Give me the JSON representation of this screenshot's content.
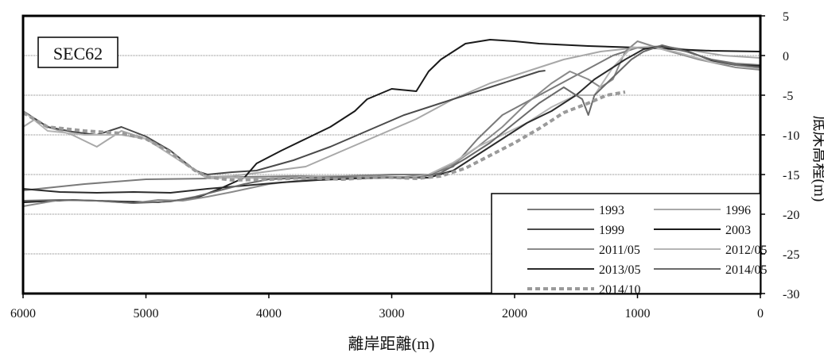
{
  "chart_data": {
    "type": "line",
    "title": "",
    "panel_label": "SEC62",
    "xlabel": "離岸距離(m)",
    "ylabel": "底床高程(m)",
    "xlim": [
      6000,
      0
    ],
    "ylim": [
      -30,
      5
    ],
    "x_ticks": [
      "6000",
      "5000",
      "4000",
      "3000",
      "2000",
      "1000",
      "0"
    ],
    "y_ticks": [
      "5",
      "0",
      "-5",
      "-10",
      "-15",
      "-20",
      "-25",
      "-30"
    ],
    "grid": true,
    "legend_position": "bottom-right",
    "series": [
      {
        "name": "1993",
        "color": "#7a7a7a",
        "dash": "",
        "width": 2,
        "points": [
          [
            6000,
            -17
          ],
          [
            5500,
            -16.2
          ],
          [
            5000,
            -15.6
          ],
          [
            4500,
            -15.5
          ],
          [
            4200,
            -15.3
          ],
          [
            3800,
            -15.2
          ],
          [
            3400,
            -15.2
          ],
          [
            3000,
            -15
          ],
          [
            2700,
            -15
          ],
          [
            2500,
            -14
          ],
          [
            2300,
            -10.5
          ],
          [
            2100,
            -7.5
          ],
          [
            1800,
            -5
          ],
          [
            1500,
            -2.5
          ],
          [
            1200,
            0
          ],
          [
            1000,
            1
          ],
          [
            800,
            1.1
          ],
          [
            600,
            0.5
          ],
          [
            400,
            -0.5
          ],
          [
            200,
            -1
          ],
          [
            0,
            -1.2
          ]
        ]
      },
      {
        "name": "1996",
        "color": "#a8a8a8",
        "dash": "",
        "width": 2,
        "points": [
          [
            6000,
            -9
          ],
          [
            5900,
            -8
          ],
          [
            5800,
            -9
          ],
          [
            5600,
            -10
          ],
          [
            5400,
            -11.5
          ],
          [
            5200,
            -9.5
          ],
          [
            5000,
            -10.5
          ],
          [
            4800,
            -12
          ],
          [
            4600,
            -14.5
          ],
          [
            4500,
            -15.3
          ],
          [
            4300,
            -15.2
          ],
          [
            4000,
            -14.6
          ],
          [
            3700,
            -14
          ],
          [
            3400,
            -12
          ],
          [
            3100,
            -10
          ],
          [
            2800,
            -8
          ],
          [
            2500,
            -5.5
          ],
          [
            2200,
            -3.5
          ],
          [
            1900,
            -2
          ],
          [
            1600,
            -0.5
          ],
          [
            1300,
            0.5
          ],
          [
            1000,
            1
          ],
          [
            800,
            1.2
          ],
          [
            500,
            0.5
          ],
          [
            300,
            0
          ],
          [
            0,
            -0.3
          ]
        ]
      },
      {
        "name": "1999",
        "color": "#4a4a4a",
        "dash": "",
        "width": 2,
        "points": [
          [
            6000,
            -7
          ],
          [
            5800,
            -9
          ],
          [
            5600,
            -9.6
          ],
          [
            5400,
            -10
          ],
          [
            5200,
            -9
          ],
          [
            5000,
            -10.2
          ],
          [
            4800,
            -12
          ],
          [
            4600,
            -14.5
          ],
          [
            4500,
            -15
          ],
          [
            4300,
            -14.7
          ],
          [
            4100,
            -14.5
          ],
          [
            3800,
            -13.2
          ],
          [
            3500,
            -11.5
          ],
          [
            3200,
            -9.5
          ],
          [
            2900,
            -7.5
          ],
          [
            2600,
            -6
          ],
          [
            2400,
            -5
          ],
          [
            2200,
            -4
          ],
          [
            2000,
            -3
          ],
          [
            1800,
            -2
          ],
          [
            1750,
            -1.9
          ]
        ]
      },
      {
        "name": "2003",
        "color": "#1a1a1a",
        "dash": "",
        "width": 2,
        "points": [
          [
            6000,
            -18.5
          ],
          [
            5600,
            -18.2
          ],
          [
            5200,
            -18.4
          ],
          [
            4900,
            -18.5
          ],
          [
            4600,
            -18
          ],
          [
            4400,
            -16.8
          ],
          [
            4200,
            -15.4
          ],
          [
            4100,
            -13.6
          ],
          [
            3900,
            -12
          ],
          [
            3700,
            -10.5
          ],
          [
            3500,
            -9
          ],
          [
            3300,
            -7
          ],
          [
            3200,
            -5.5
          ],
          [
            3000,
            -4.2
          ],
          [
            2800,
            -4.5
          ],
          [
            2700,
            -2
          ],
          [
            2600,
            -0.5
          ],
          [
            2400,
            1.5
          ],
          [
            2200,
            2
          ],
          [
            2000,
            1.8
          ],
          [
            1800,
            1.5
          ],
          [
            1400,
            1.2
          ],
          [
            1000,
            1
          ],
          [
            700,
            0.8
          ],
          [
            400,
            0.6
          ],
          [
            0,
            0.5
          ]
        ]
      },
      {
        "name": "2011/05",
        "color": "#8a8a8a",
        "dash": "",
        "width": 2,
        "points": [
          [
            6000,
            -19
          ],
          [
            5700,
            -18.2
          ],
          [
            5400,
            -18.3
          ],
          [
            5100,
            -18.6
          ],
          [
            4900,
            -18.2
          ],
          [
            4700,
            -18.3
          ],
          [
            4500,
            -17.8
          ],
          [
            4300,
            -17.2
          ],
          [
            4000,
            -16.2
          ],
          [
            3600,
            -15.5
          ],
          [
            3200,
            -15.2
          ],
          [
            2900,
            -15.3
          ],
          [
            2700,
            -15
          ],
          [
            2500,
            -13.7
          ],
          [
            2300,
            -11.5
          ],
          [
            2100,
            -9
          ],
          [
            1900,
            -6
          ],
          [
            1700,
            -3.5
          ],
          [
            1550,
            -2
          ],
          [
            1400,
            -3
          ],
          [
            1300,
            -4
          ],
          [
            1200,
            -3
          ],
          [
            1100,
            0.5
          ],
          [
            1000,
            1.8
          ],
          [
            800,
            0.8
          ],
          [
            500,
            -0.5
          ],
          [
            200,
            -1.5
          ],
          [
            0,
            -1.8
          ]
        ]
      },
      {
        "name": "2012/05",
        "color": "#b5b5b5",
        "dash": "",
        "width": 2,
        "points": [
          [
            6000,
            -7
          ],
          [
            5800,
            -9.5
          ],
          [
            5500,
            -10
          ],
          [
            5200,
            -10
          ],
          [
            5000,
            -10.5
          ],
          [
            4800,
            -12.5
          ],
          [
            4600,
            -14.5
          ],
          [
            4500,
            -15.5
          ],
          [
            4300,
            -15.4
          ],
          [
            4000,
            -15.5
          ],
          [
            3600,
            -15.2
          ],
          [
            3200,
            -15.3
          ],
          [
            2900,
            -15.5
          ],
          [
            2700,
            -15
          ],
          [
            2500,
            -13.5
          ],
          [
            2300,
            -11.5
          ],
          [
            2100,
            -10
          ],
          [
            1900,
            -8.5
          ],
          [
            1700,
            -6.5
          ],
          [
            1500,
            -5
          ],
          [
            1350,
            -5
          ],
          [
            1200,
            -1.5
          ],
          [
            1050,
            1
          ],
          [
            900,
            1.1
          ],
          [
            700,
            0.5
          ],
          [
            400,
            -0.8
          ],
          [
            0,
            -1.6
          ]
        ]
      },
      {
        "name": "2013/05",
        "color": "#2b2b2b",
        "dash": "",
        "width": 2,
        "points": [
          [
            6000,
            -16.8
          ],
          [
            5700,
            -17.2
          ],
          [
            5400,
            -17.3
          ],
          [
            5100,
            -17.2
          ],
          [
            4800,
            -17.3
          ],
          [
            4500,
            -16.8
          ],
          [
            4200,
            -16.4
          ],
          [
            3900,
            -16
          ],
          [
            3600,
            -15.7
          ],
          [
            3300,
            -15.5
          ],
          [
            3000,
            -15.4
          ],
          [
            2700,
            -15.4
          ],
          [
            2500,
            -14.5
          ],
          [
            2300,
            -12.5
          ],
          [
            2100,
            -10.5
          ],
          [
            1900,
            -8.5
          ],
          [
            1700,
            -7
          ],
          [
            1500,
            -5
          ],
          [
            1350,
            -3
          ],
          [
            1250,
            -2
          ],
          [
            1100,
            -0.5
          ],
          [
            950,
            0.8
          ],
          [
            800,
            1.2
          ],
          [
            600,
            0.6
          ],
          [
            400,
            -0.6
          ],
          [
            200,
            -1.2
          ],
          [
            0,
            -1.3
          ]
        ]
      },
      {
        "name": "2014/05",
        "color": "#6a6a6a",
        "dash": "",
        "width": 2,
        "points": [
          [
            6000,
            -18.3
          ],
          [
            5700,
            -18.2
          ],
          [
            5400,
            -18.3
          ],
          [
            5100,
            -18.6
          ],
          [
            4800,
            -18.4
          ],
          [
            4600,
            -17.8
          ],
          [
            4400,
            -17
          ],
          [
            4200,
            -16.2
          ],
          [
            4000,
            -15.6
          ],
          [
            3700,
            -15.4
          ],
          [
            3400,
            -15.3
          ],
          [
            3100,
            -15.4
          ],
          [
            2800,
            -15.4
          ],
          [
            2600,
            -14.8
          ],
          [
            2400,
            -13
          ],
          [
            2200,
            -11
          ],
          [
            2000,
            -8.5
          ],
          [
            1800,
            -6
          ],
          [
            1600,
            -4
          ],
          [
            1450,
            -5.5
          ],
          [
            1400,
            -7.5
          ],
          [
            1350,
            -5
          ],
          [
            1250,
            -3.5
          ],
          [
            1150,
            -2
          ],
          [
            1050,
            -0.5
          ],
          [
            950,
            0.5
          ],
          [
            800,
            1.3
          ],
          [
            600,
            0.5
          ],
          [
            400,
            -0.5
          ],
          [
            200,
            -1.2
          ],
          [
            0,
            -1.5
          ]
        ]
      },
      {
        "name": "2014/10",
        "color": "#9a9a9a",
        "dash": "6 4",
        "width": 4,
        "points": [
          [
            6000,
            -7.2
          ],
          [
            5800,
            -9
          ],
          [
            5500,
            -9.5
          ],
          [
            5200,
            -9.8
          ],
          [
            5000,
            -10.5
          ],
          [
            4800,
            -12.2
          ],
          [
            4600,
            -14.5
          ],
          [
            4500,
            -15.3
          ],
          [
            4300,
            -15.7
          ],
          [
            4000,
            -15.6
          ],
          [
            3700,
            -15.4
          ],
          [
            3400,
            -15.6
          ],
          [
            3100,
            -15.3
          ],
          [
            2800,
            -15.5
          ],
          [
            2600,
            -15.2
          ],
          [
            2400,
            -14.2
          ],
          [
            2200,
            -12.6
          ],
          [
            2000,
            -11
          ],
          [
            1800,
            -9.2
          ],
          [
            1600,
            -7.2
          ],
          [
            1400,
            -6
          ],
          [
            1250,
            -5
          ],
          [
            1100,
            -4.6
          ]
        ]
      }
    ]
  }
}
